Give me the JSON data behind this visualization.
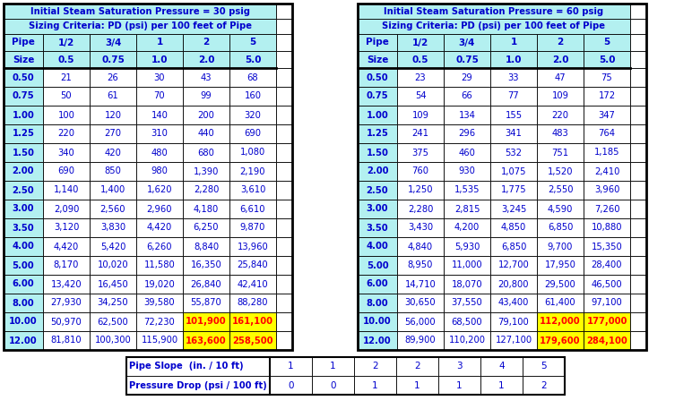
{
  "header_color": "#b3f0f0",
  "border_color": "#000000",
  "text_color": "#0000cd",
  "highlight_color": "#ffff00",
  "highlight_text_color": "#ff0000",
  "white": "#ffffff",
  "label30": "Initial Steam Saturation Pressure = 30 psig",
  "label60": "Initial Steam Saturation Pressure = 60 psig",
  "sizing_criteria": "Sizing Criteria: PD (psi) per 100 feet of Pipe",
  "pipe_sizes": [
    "0.50",
    "0.75",
    "1.00",
    "1.25",
    "1.50",
    "2.00",
    "2.50",
    "3.00",
    "3.50",
    "4.00",
    "5.00",
    "6.00",
    "8.00",
    "10.00",
    "12.00"
  ],
  "pd_headers": [
    "1/2",
    "3/4",
    "1",
    "2",
    "5"
  ],
  "pd_subheaders": [
    "0.5",
    "0.75",
    "1.0",
    "2.0",
    "5.0"
  ],
  "data30": [
    [
      21,
      26,
      30,
      43,
      68
    ],
    [
      50,
      61,
      70,
      99,
      160
    ],
    [
      100,
      120,
      140,
      200,
      320
    ],
    [
      220,
      270,
      310,
      440,
      690
    ],
    [
      340,
      420,
      480,
      680,
      1080
    ],
    [
      690,
      850,
      980,
      1390,
      2190
    ],
    [
      1140,
      1400,
      1620,
      2280,
      3610
    ],
    [
      2090,
      2560,
      2960,
      4180,
      6610
    ],
    [
      3120,
      3830,
      4420,
      6250,
      9870
    ],
    [
      4420,
      5420,
      6260,
      8840,
      13960
    ],
    [
      8170,
      10020,
      11580,
      16350,
      25840
    ],
    [
      13420,
      16450,
      19020,
      26840,
      42410
    ],
    [
      27930,
      34250,
      39580,
      55870,
      88280
    ],
    [
      50970,
      62500,
      72230,
      101900,
      161100
    ],
    [
      81810,
      100300,
      115900,
      163600,
      258500
    ]
  ],
  "data60": [
    [
      23,
      29,
      33,
      47,
      75
    ],
    [
      54,
      66,
      77,
      109,
      172
    ],
    [
      109,
      134,
      155,
      220,
      347
    ],
    [
      241,
      296,
      341,
      483,
      764
    ],
    [
      375,
      460,
      532,
      751,
      1185
    ],
    [
      760,
      930,
      1075,
      1520,
      2410
    ],
    [
      1250,
      1535,
      1775,
      2550,
      3960
    ],
    [
      2280,
      2815,
      3245,
      4590,
      7260
    ],
    [
      3430,
      4200,
      4850,
      6850,
      10880
    ],
    [
      4840,
      5930,
      6850,
      9700,
      15350
    ],
    [
      8950,
      11000,
      12700,
      17950,
      28400
    ],
    [
      14710,
      18070,
      20800,
      29500,
      46500
    ],
    [
      30650,
      37550,
      43400,
      61400,
      97100
    ],
    [
      56000,
      68500,
      79100,
      112000,
      177000
    ],
    [
      89900,
      110200,
      127100,
      179600,
      284100
    ]
  ],
  "pipe_slope_label": "Pipe Slope  (in. / 10 ft)",
  "pressure_drop_label": "Pressure Drop (psi / 100 ft)",
  "pipe_slope_values": [
    "1",
    "1",
    "2",
    "2",
    "3",
    "4",
    "5"
  ],
  "pressure_drop_values": [
    "0",
    "0",
    "1",
    "1",
    "1",
    "1",
    "2"
  ],
  "highlighted_rows": [
    13,
    14
  ],
  "highlighted_cols": [
    3,
    4
  ],
  "fig_w": 7.72,
  "fig_h": 4.57,
  "dpi": 100
}
